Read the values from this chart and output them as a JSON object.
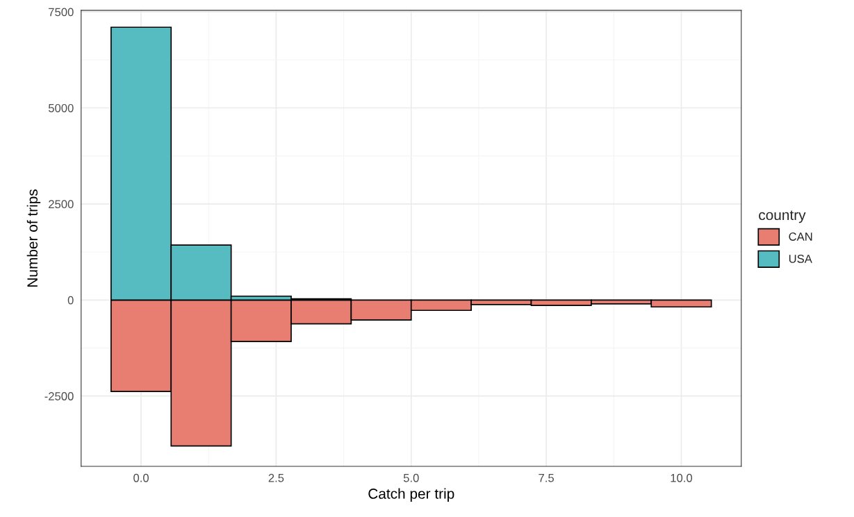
{
  "chart_data": {
    "type": "histogram",
    "xlabel": "Catch per trip",
    "ylabel": "Number of trips",
    "legend_title": "country",
    "bins": [
      -0.556,
      0.556,
      1.667,
      2.778,
      3.889,
      5.0,
      6.111,
      7.222,
      8.333,
      9.444,
      10.556
    ],
    "series": [
      {
        "name": "CAN",
        "color": "#e87d72",
        "values": [
          -2380,
          -3800,
          -1080,
          -620,
          -520,
          -270,
          -120,
          -140,
          -100,
          -180
        ]
      },
      {
        "name": "USA",
        "color": "#56bcc2",
        "values": [
          7100,
          1430,
          100,
          30,
          null,
          null,
          null,
          null,
          null,
          null
        ]
      }
    ],
    "xlim": [
      -1.11,
      11.11
    ],
    "ylim": [
      -4330,
      7540
    ],
    "xticks": [
      {
        "value": 0,
        "label": "0.0"
      },
      2.5,
      {
        "value": 5,
        "label": "5.0"
      },
      7.5,
      {
        "value": 10,
        "label": "10.0"
      }
    ],
    "yticks": [
      -2500,
      0,
      2500,
      5000,
      7500
    ],
    "grid": true,
    "legend": "right"
  }
}
